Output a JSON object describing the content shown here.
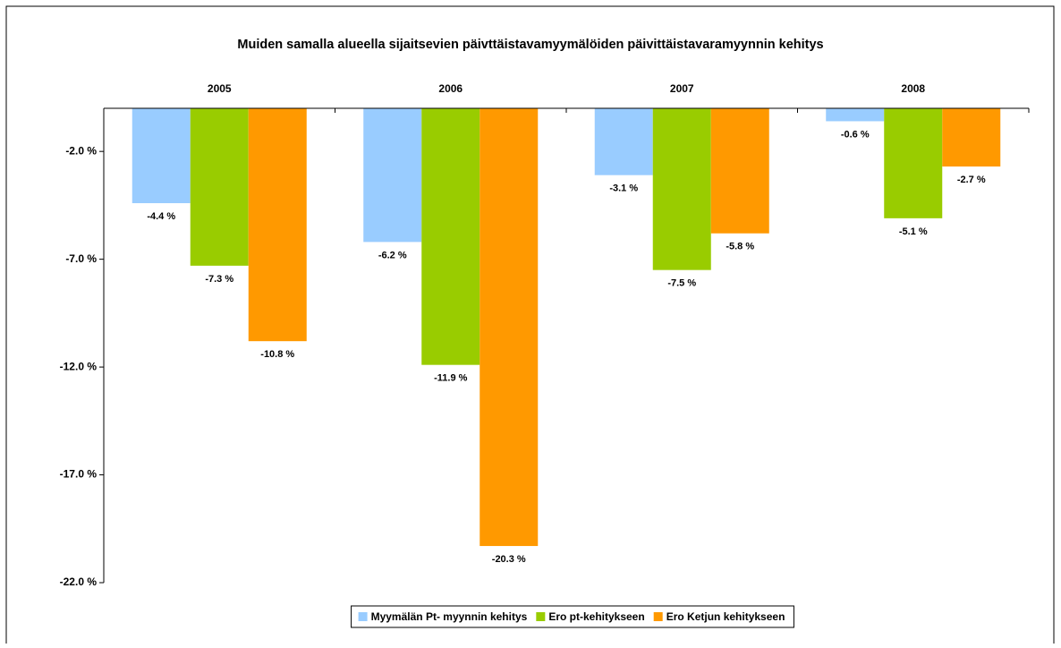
{
  "chart_data": {
    "type": "bar",
    "title": "Muiden samalla alueella sijaitsevien päivttäistavamyymälöiden päivittäistavaramyynnin kehitys",
    "categories": [
      "2005",
      "2006",
      "2007",
      "2008"
    ],
    "series": [
      {
        "name": "Myymälän Pt- myynnin kehitys",
        "color": "#99ccff",
        "values": [
          -4.4,
          -6.2,
          -3.1,
          -0.6
        ],
        "value_labels": [
          "-4.4 %",
          "-6.2 %",
          "-3.1 %",
          "-0.6 %"
        ]
      },
      {
        "name": "Ero pt-kehitykseen",
        "color": "#99cc00",
        "values": [
          -7.3,
          -11.9,
          -7.5,
          -5.1
        ],
        "value_labels": [
          "-7.3 %",
          "-11.9 %",
          "-7.5 %",
          "-5.1 %"
        ]
      },
      {
        "name": "Ero Ketjun kehitykseen",
        "color": "#ff9900",
        "values": [
          -10.8,
          -20.3,
          -5.8,
          -2.7
        ],
        "value_labels": [
          "-10.8 %",
          "-20.3 %",
          "-5.8 %",
          "-2.7 %"
        ]
      }
    ],
    "ylim": [
      -22,
      0
    ],
    "yticks": [
      {
        "value": -2,
        "label": "-2.0 %"
      },
      {
        "value": -7,
        "label": "-7.0 %"
      },
      {
        "value": -12,
        "label": "-12.0 %"
      },
      {
        "value": -17,
        "label": "-17.0 %"
      },
      {
        "value": -22,
        "label": "-22.0 %"
      }
    ],
    "legend": "bottom"
  }
}
